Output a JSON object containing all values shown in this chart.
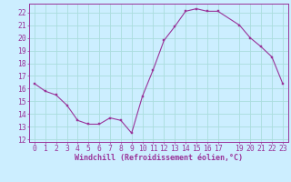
{
  "x": [
    0,
    1,
    2,
    3,
    4,
    5,
    6,
    7,
    8,
    9,
    10,
    11,
    12,
    13,
    14,
    15,
    16,
    17,
    19,
    20,
    21,
    22,
    23
  ],
  "y": [
    16.4,
    15.8,
    15.5,
    14.7,
    13.5,
    13.2,
    13.2,
    13.7,
    13.5,
    12.5,
    15.4,
    17.5,
    19.8,
    20.9,
    22.1,
    22.3,
    22.1,
    22.1,
    21.0,
    20.0,
    19.3,
    18.5,
    16.4
  ],
  "line_color": "#993399",
  "marker_color": "#993399",
  "bg_color": "#cceeff",
  "grid_color": "#aadddd",
  "axis_color": "#993399",
  "tick_color": "#993399",
  "xlabel": "Windchill (Refroidissement éolien,°C)",
  "xlabel_fontsize": 6.0,
  "tick_fontsize": 5.8,
  "ylim": [
    11.8,
    22.7
  ],
  "xlim": [
    -0.5,
    23.5
  ],
  "yticks": [
    12,
    13,
    14,
    15,
    16,
    17,
    18,
    19,
    20,
    21,
    22
  ],
  "xticks": [
    0,
    1,
    2,
    3,
    4,
    5,
    6,
    7,
    8,
    9,
    10,
    11,
    12,
    13,
    14,
    15,
    16,
    17,
    19,
    20,
    21,
    22,
    23
  ]
}
